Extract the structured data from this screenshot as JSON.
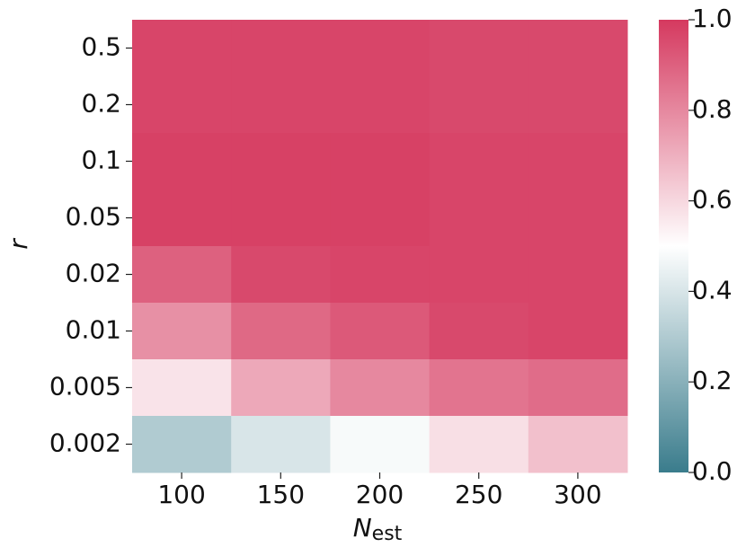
{
  "chart_data": {
    "type": "heatmap",
    "x_categories": [
      "100",
      "150",
      "200",
      "250",
      "300"
    ],
    "y_categories": [
      "0.5",
      "0.2",
      "0.1",
      "0.05",
      "0.02",
      "0.01",
      "0.005",
      "0.002"
    ],
    "values": [
      [
        0.97,
        0.97,
        0.97,
        0.96,
        0.96
      ],
      [
        0.97,
        0.97,
        0.97,
        0.96,
        0.96
      ],
      [
        0.98,
        0.98,
        0.98,
        0.97,
        0.97
      ],
      [
        0.98,
        0.98,
        0.98,
        0.97,
        0.97
      ],
      [
        0.9,
        0.96,
        0.97,
        0.97,
        0.97
      ],
      [
        0.78,
        0.88,
        0.92,
        0.96,
        0.97
      ],
      [
        0.57,
        0.72,
        0.8,
        0.85,
        0.87
      ],
      [
        0.3,
        0.4,
        0.48,
        0.58,
        0.66
      ]
    ],
    "xlabel": "N",
    "xlabel_subscript": "est",
    "ylabel": "r",
    "colors": [
      "#3a7c8c",
      "#ffffff",
      "#d5395f"
    ],
    "colorbar": {
      "lim": [
        0,
        1
      ],
      "ticks": [
        {
          "value": 0,
          "label": "0.0"
        },
        0.2,
        0.4,
        0.6,
        0.8,
        {
          "value": 1,
          "label": "1.0"
        }
      ]
    }
  }
}
